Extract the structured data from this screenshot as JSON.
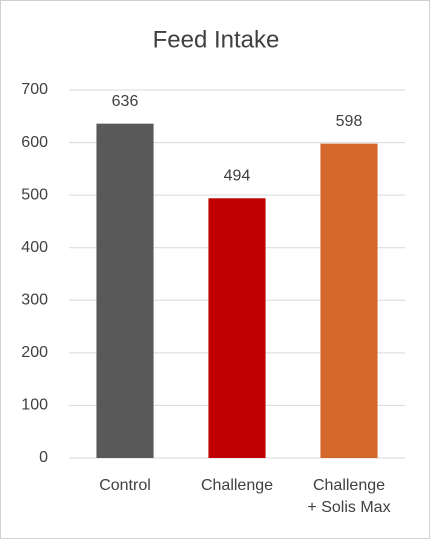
{
  "chart_data": {
    "type": "bar",
    "title": "Feed Intake",
    "categories": [
      "Control",
      "Challenge",
      "Challenge\n+ Solis Max"
    ],
    "values": [
      636,
      494,
      598
    ],
    "colors": [
      "#595959",
      "#c00000",
      "#d4672a"
    ],
    "ylim": [
      0,
      700
    ],
    "yticks": [
      0,
      100,
      200,
      300,
      400,
      500,
      600,
      700
    ],
    "grid": true
  }
}
